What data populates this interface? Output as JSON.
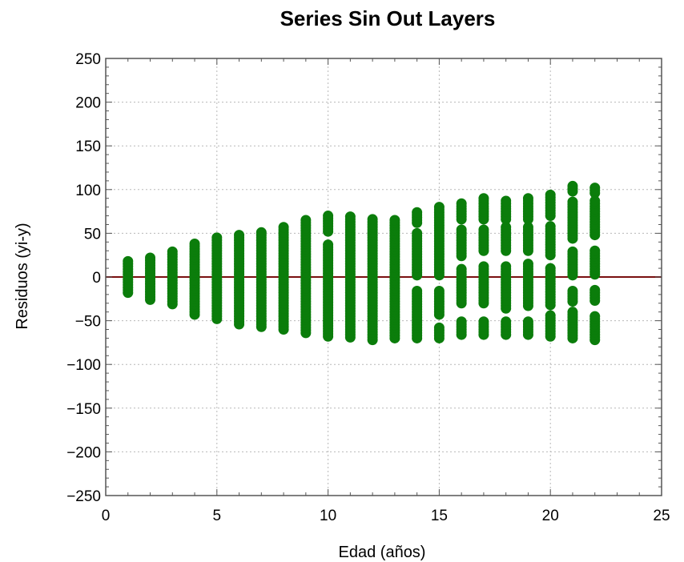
{
  "chart_data": {
    "type": "scatter",
    "title": "Series Sin Out Layers",
    "xlabel": "Edad (años)",
    "ylabel": "Residuos (yi-y)",
    "xlim": [
      0,
      25
    ],
    "ylim": [
      -250,
      250
    ],
    "xticks": [
      0,
      5,
      10,
      15,
      20,
      25
    ],
    "yticks": [
      250,
      200,
      150,
      100,
      50,
      0,
      -50,
      -100,
      -150,
      -200,
      -250
    ],
    "xtick_labels": [
      "0",
      "5",
      "10",
      "15",
      "20",
      "25"
    ],
    "ytick_labels": [
      "250",
      "200",
      "150",
      "100",
      "50",
      "0",
      "−50",
      "−100",
      "−150",
      "−200",
      "−250"
    ],
    "grid": true,
    "reference_line": {
      "y": 0,
      "color": "#7a1010"
    },
    "point_color": "#0b7d0b",
    "series": [
      {
        "points": [
          {
            "x": 1,
            "ymin": -18,
            "ymax": 18,
            "gaps": []
          },
          {
            "x": 2,
            "ymin": -26,
            "ymax": 24,
            "gaps": []
          },
          {
            "x": 3,
            "ymin": -31,
            "ymax": 30,
            "gaps": []
          },
          {
            "x": 4,
            "ymin": -43,
            "ymax": 40,
            "gaps": []
          },
          {
            "x": 5,
            "ymin": -48,
            "ymax": 46,
            "gaps": []
          },
          {
            "x": 6,
            "ymin": -54,
            "ymax": 48,
            "gaps": []
          },
          {
            "x": 7,
            "ymin": -57,
            "ymax": 51,
            "gaps": []
          },
          {
            "x": 8,
            "ymin": -60,
            "ymax": 59,
            "gaps": []
          },
          {
            "x": 9,
            "ymin": -64,
            "ymax": 66,
            "gaps": []
          },
          {
            "x": 10,
            "ymin": -68,
            "ymax": 72,
            "gaps": [
              [
                37,
                50
              ]
            ]
          },
          {
            "x": 11,
            "ymin": -69,
            "ymax": 70,
            "gaps": []
          },
          {
            "x": 12,
            "ymin": -72,
            "ymax": 67,
            "gaps": []
          },
          {
            "x": 13,
            "ymin": -70,
            "ymax": 67,
            "gaps": []
          },
          {
            "x": 14,
            "ymin": -70,
            "ymax": 75,
            "gaps": [
              [
                -15,
                0
              ],
              [
                52,
                60
              ]
            ]
          },
          {
            "x": 15,
            "ymin": -70,
            "ymax": 80,
            "gaps": [
              [
                -15,
                0
              ],
              [
                -56,
                -44
              ]
            ]
          },
          {
            "x": 16,
            "ymin": -66,
            "ymax": 85,
            "gaps": [
              [
                -50,
                -32
              ],
              [
                10,
                24
              ],
              [
                55,
                66
              ]
            ]
          },
          {
            "x": 17,
            "ymin": -66,
            "ymax": 90,
            "gaps": [
              [
                -50,
                -32
              ],
              [
                12,
                28
              ],
              [
                55,
                66
              ]
            ]
          },
          {
            "x": 18,
            "ymin": -66,
            "ymax": 88,
            "gaps": [
              [
                -50,
                -36
              ],
              [
                14,
                28
              ],
              [
                58,
                66
              ]
            ]
          },
          {
            "x": 19,
            "ymin": -66,
            "ymax": 90,
            "gaps": [
              [
                -50,
                -34
              ],
              [
                15,
                28
              ],
              [
                58,
                66
              ]
            ]
          },
          {
            "x": 20,
            "ymin": -68,
            "ymax": 96,
            "gaps": [
              [
                -44,
                -32
              ],
              [
                12,
                24
              ],
              [
                60,
                70
              ]
            ]
          },
          {
            "x": 21,
            "ymin": -70,
            "ymax": 104,
            "gaps": [
              [
                -40,
                -28
              ],
              [
                -14,
                2
              ],
              [
                30,
                44
              ],
              [
                88,
                96
              ]
            ]
          },
          {
            "x": 22,
            "ymin": -72,
            "ymax": 104,
            "gaps": [
              [
                -44,
                -28
              ],
              [
                -14,
                2
              ],
              [
                32,
                46
              ],
              [
                88,
                96
              ]
            ]
          }
        ]
      }
    ]
  }
}
